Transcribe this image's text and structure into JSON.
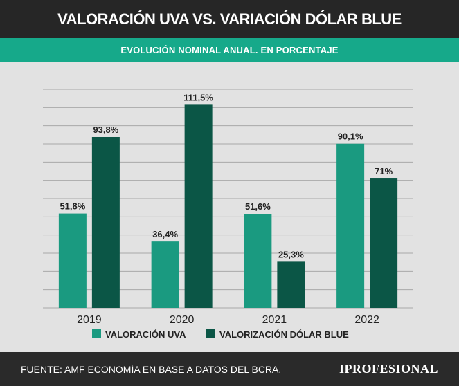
{
  "header": {
    "title": "VALORACIÓN UVA VS. VARIACIÓN DÓLAR BLUE",
    "subtitle": "EVOLUCIÓN NOMINAL ANUAL. EN PORCENTAJE"
  },
  "footer": {
    "source": "FUENTE: AMF ECONOMÍA EN BASE A DATOS DEL BCRA.",
    "logo": "IPROFESIONAL"
  },
  "colors": {
    "uva": "#1a9a80",
    "dolar": "#0b5646",
    "grid": "#a8a8a8",
    "label": "#222222"
  },
  "chart_data": {
    "type": "bar",
    "categories": [
      "2019",
      "2020",
      "2021",
      "2022"
    ],
    "series": [
      {
        "name": "VALORACIÓN UVA",
        "values": [
          51.8,
          36.4,
          51.6,
          90.1
        ],
        "labels": [
          "51,8%",
          "36,4%",
          "51,6%",
          "90,1%"
        ]
      },
      {
        "name": "VALORIZACIÓN DÓLAR BLUE",
        "values": [
          93.8,
          111.5,
          25.3,
          71
        ],
        "labels": [
          "93,8%",
          "111,5%",
          "25,3%",
          "71%"
        ]
      }
    ],
    "ylim": [
      0,
      120
    ],
    "grid": true,
    "legend": "bottom"
  }
}
